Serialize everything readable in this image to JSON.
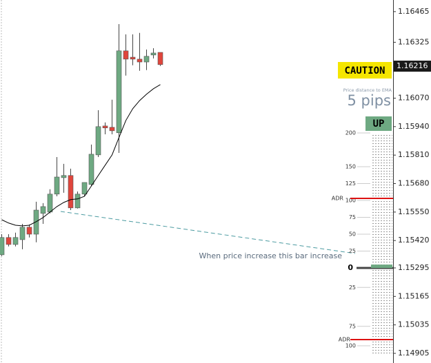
{
  "chart_data": {
    "type": "candlestick",
    "open": [
      1.15355,
      1.15434,
      1.15402,
      1.15424,
      1.15481,
      1.15449,
      1.15544,
      1.1555,
      1.15632,
      1.15707,
      1.15717,
      1.15569,
      1.15632,
      1.15676,
      1.15811,
      1.15943,
      1.15937,
      1.15912,
      1.16286,
      1.16257,
      1.16248,
      1.16235,
      1.16267,
      1.16279
    ],
    "high": [
      1.15449,
      1.15449,
      1.15456,
      1.15496,
      1.15493,
      1.15597,
      1.15591,
      1.15654,
      1.15801,
      1.1577,
      1.15748,
      1.15644,
      1.15685,
      1.15858,
      1.16015,
      1.15959,
      1.16063,
      1.16408,
      1.16361,
      1.16361,
      1.16368,
      1.16292,
      1.16298,
      1.16279
    ],
    "low": [
      1.15349,
      1.15393,
      1.15393,
      1.1538,
      1.15434,
      1.15412,
      1.15496,
      1.15544,
      1.15622,
      1.15638,
      1.15559,
      1.15566,
      1.15622,
      1.15669,
      1.15801,
      1.15905,
      1.15905,
      1.1582,
      1.16173,
      1.1622,
      1.16195,
      1.16198,
      1.16251,
      1.16217
    ],
    "close": [
      1.15434,
      1.15402,
      1.15434,
      1.15481,
      1.15449,
      1.15559,
      1.15575,
      1.15632,
      1.1571,
      1.15717,
      1.15569,
      1.15632,
      1.15685,
      1.15814,
      1.1594,
      1.15934,
      1.15921,
      1.16286,
      1.16248,
      1.16248,
      1.16235,
      1.16261,
      1.16276,
      1.16223
    ],
    "ema": [
      1.15515,
      1.155,
      1.1549,
      1.15487,
      1.1549,
      1.15506,
      1.15525,
      1.1555,
      1.15575,
      1.15594,
      1.15607,
      1.1561,
      1.15622,
      1.15669,
      1.15717,
      1.15764,
      1.15811,
      1.1589,
      1.15968,
      1.16022,
      1.16059,
      1.16088,
      1.16113,
      1.16132
    ],
    "up_color": "#6ea982",
    "down_color": "#e0453c",
    "ema_color": "#000000",
    "ylim": [
      1.14861,
      1.16518
    ],
    "yticks": [
      1.16465,
      1.16325,
      {
        "value": 1.1607,
        "label": "1.16070"
      },
      {
        "value": 1.1594,
        "label": "1.15940"
      },
      {
        "value": 1.1581,
        "label": "1.15810"
      },
      {
        "value": 1.1568,
        "label": "1.15680"
      },
      {
        "value": 1.1555,
        "label": "1.15550"
      },
      {
        "value": 1.1542,
        "label": "1.15420"
      },
      1.15295,
      1.15165,
      1.15035,
      1.14905
    ],
    "last_price": 1.16216,
    "indicator": {
      "signal": "CAUTION",
      "caption": "Price distance to EMA",
      "distance": 5,
      "distance_label": "5 pips",
      "trend": "UP",
      "ticks_above": [
        200,
        150,
        125,
        100,
        75,
        50,
        25
      ],
      "zero": 0,
      "ticks_below": [
        25,
        75,
        100
      ],
      "adr_above": {
        "label": "ADR",
        "value": 103
      },
      "adr_below": {
        "label": "ADR",
        "value": 92
      },
      "annotation": "When price increase this bar increase"
    }
  }
}
